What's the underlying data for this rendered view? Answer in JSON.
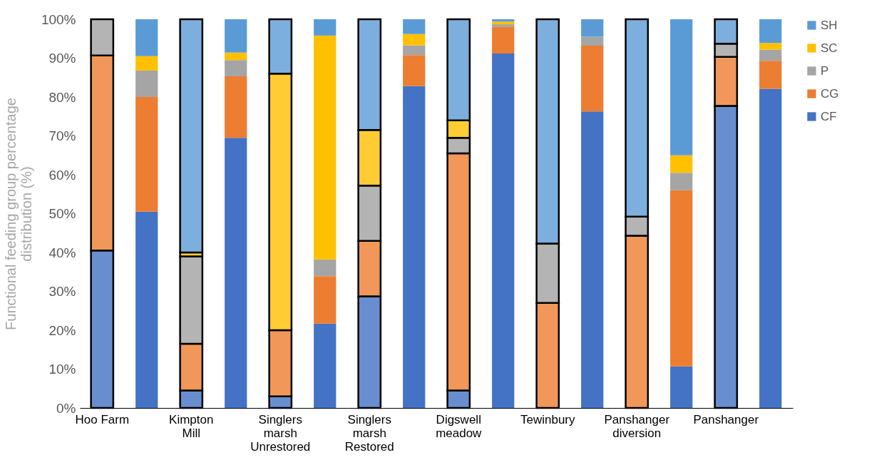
{
  "chart_data": {
    "type": "bar",
    "stacked": true,
    "ylabel": "Functional feeding group percentage\ndistribution (%)",
    "categories": [
      "Hoo Farm",
      null,
      "Kimpton\nMill",
      null,
      "Singlers\nmarsh\nUnrestored",
      null,
      "Singlers\nmarsh\nRestored",
      null,
      "Digswell\nmeadow",
      null,
      "Tewinbury",
      null,
      "Panshanger\ndiversion",
      null,
      "Panshanger",
      null
    ],
    "series": [
      {
        "name": "CF",
        "color": "#4472c4",
        "colors": [
          "#698ed0",
          "#4472c4",
          "#698ed0",
          "#4472c4",
          "#698ed0",
          "#4472c4",
          "#698ed0",
          "#4472c4",
          "#698ed0",
          "#4472c4",
          "#698ed0",
          "#4472c4",
          "#698ed0",
          "#4472c4",
          "#698ed0",
          "#4472c4"
        ],
        "values": [
          40.5,
          50.5,
          4.5,
          69.5,
          3,
          21.7,
          28.7,
          82.8,
          4.5,
          91.2,
          0,
          76.3,
          0,
          10.7,
          77.7,
          82.1
        ]
      },
      {
        "name": "CG",
        "color": "#ed7d31",
        "colors": [
          "#f1975a",
          "#ed7d31",
          "#f1975a",
          "#ed7d31",
          "#f1975a",
          "#ed7d31",
          "#f1975a",
          "#ed7d31",
          "#f1975a",
          "#ed7d31",
          "#f1975a",
          "#ed7d31",
          "#f1975a",
          "#ed7d31",
          "#f1975a",
          "#ed7d31"
        ],
        "values": [
          50.2,
          29.5,
          12,
          15.8,
          17,
          12.2,
          14.3,
          8,
          61,
          6.8,
          27,
          16.9,
          44.3,
          45.3,
          12.6,
          7.2
        ]
      },
      {
        "name": "P",
        "color": "#a5a5a5",
        "colors": [
          "#b4b4b4",
          "#a5a5a5",
          "#b4b4b4",
          "#a5a5a5",
          "#b4b4b4",
          "#a5a5a5",
          "#b4b4b4",
          "#a5a5a5",
          "#b4b4b4",
          "#a5a5a5",
          "#b4b4b4",
          "#a5a5a5",
          "#b4b4b4",
          "#a5a5a5",
          "#b4b4b4",
          "#a5a5a5"
        ],
        "values": [
          9.3,
          6.8,
          22.5,
          4.2,
          0,
          4.3,
          14.2,
          2.5,
          4,
          0.7,
          15.3,
          2.3,
          4.9,
          4.5,
          3.4,
          2.9
        ]
      },
      {
        "name": "SC",
        "color": "#ffc000",
        "colors": [
          "#ffcd33",
          "#ffc000",
          "#ffcd33",
          "#ffc000",
          "#ffcd33",
          "#ffc000",
          "#ffcd33",
          "#ffc000",
          "#ffcd33",
          "#ffc000",
          "#ffcd33",
          "#ffc000",
          "#ffcd33",
          "#ffc000",
          "#ffcd33",
          "#ffc000"
        ],
        "values": [
          0,
          3.7,
          1,
          1.9,
          66,
          57.6,
          14.3,
          2.9,
          4.5,
          0.7,
          0,
          0,
          0,
          4.5,
          0,
          1.7
        ]
      },
      {
        "name": "SH",
        "color": "#5b9bd5",
        "colors": [
          "#7cafdd",
          "#5b9bd5",
          "#7cafdd",
          "#5b9bd5",
          "#7cafdd",
          "#5b9bd5",
          "#7cafdd",
          "#5b9bd5",
          "#7cafdd",
          "#5b9bd5",
          "#7cafdd",
          "#5b9bd5",
          "#7cafdd",
          "#5b9bd5",
          "#7cafdd",
          "#5b9bd5"
        ],
        "values": [
          0,
          9.5,
          60,
          8.6,
          14,
          4.2,
          28.5,
          3.8,
          26,
          0.6,
          57.7,
          4.5,
          50.8,
          35,
          6.3,
          6.1
        ]
      }
    ],
    "ylim": [
      0,
      100
    ],
    "yticks": [
      {
        "value": 0,
        "label": "0%"
      },
      {
        "value": 10,
        "label": "10%"
      },
      {
        "value": 20,
        "label": "20%"
      },
      {
        "value": 30,
        "label": "30%"
      },
      {
        "value": 40,
        "label": "40%"
      },
      {
        "value": 50,
        "label": "50%"
      },
      {
        "value": 60,
        "label": "60%"
      },
      {
        "value": 70,
        "label": "70%"
      },
      {
        "value": 80,
        "label": "80%"
      },
      {
        "value": 90,
        "label": "90%"
      },
      {
        "value": 100,
        "label": "100%"
      }
    ],
    "grid": false,
    "legend": "right"
  }
}
